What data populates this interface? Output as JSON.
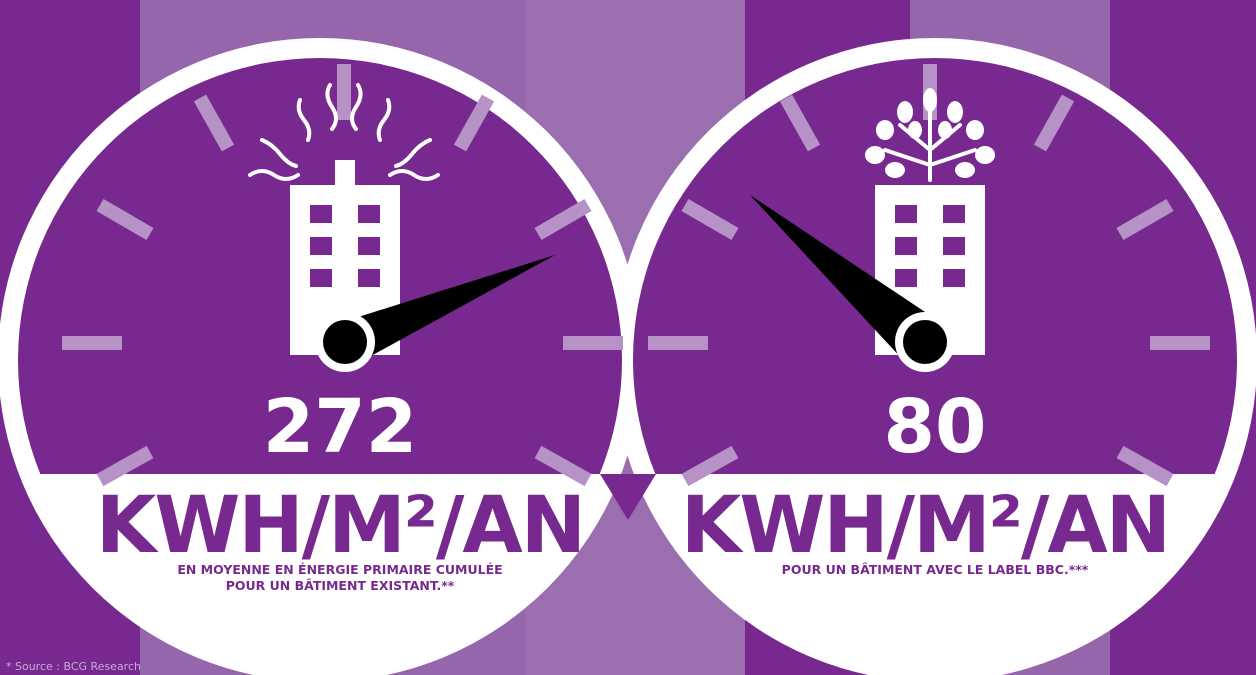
{
  "gauges": [
    {
      "value": "272",
      "unit": "KWH/M²/AN",
      "caption": [
        "EN MOYENNE EN ÉNERGIE PRIMAIRE CUMULÉE",
        "POUR UN BÂTIMENT EXISTANT.**"
      ]
    },
    {
      "value": "80",
      "unit": "KWH/M²/AN",
      "caption": [
        "POUR UN BÂTIMENT AVEC LE LABEL BBC.***"
      ]
    }
  ],
  "footer": "* Source : BCG Research"
}
